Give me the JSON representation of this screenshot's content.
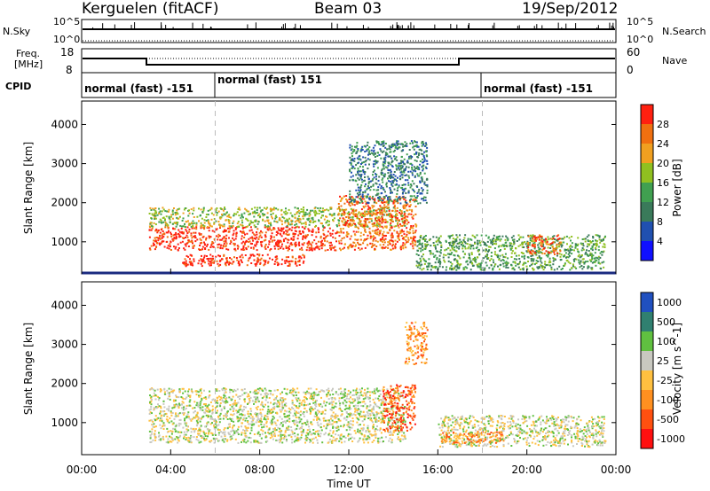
{
  "header": {
    "station": "Kerguelen (fitACF)",
    "beam": "Beam 03",
    "date": "19/Sep/2012"
  },
  "left_labels": {
    "nsky": "N.Sky",
    "freq": "Freq.",
    "mhz": "[MHz]",
    "cpid": "CPID",
    "nsky_top": "10^5",
    "nsky_bottom": "10^0",
    "freq_top": "18",
    "freq_bottom": "8"
  },
  "right_labels": {
    "nsearch": "N.Search",
    "nave": "Nave",
    "nsearch_top": "10^5",
    "nsearch_bottom": "10^0",
    "nave_top": "60",
    "nave_bottom": "0"
  },
  "cpid_segments": [
    {
      "label": "normal (fast) -151",
      "start_hour": 0
    },
    {
      "label": "normal (fast) 151",
      "start_hour": 6
    },
    {
      "label": "normal (fast) -151",
      "start_hour": 18
    }
  ],
  "colors": {
    "power_scale": [
      "#1010ff",
      "#2050b0",
      "#3a7a5a",
      "#40a050",
      "#90c020",
      "#f0a020",
      "#f07010",
      "#ff2010"
    ],
    "velocity_scale": [
      "#ff1010",
      "#ff5010",
      "#ff9020",
      "#ffc040",
      "#c8c8c0",
      "#60c040",
      "#308070",
      "#2050c0"
    ],
    "ground_scatter": "#b8b8b0"
  },
  "chart_data": [
    {
      "type": "heatmap",
      "name": "power",
      "ylabel": "Slant Range [km]",
      "xlabel": "",
      "colorbar_label": "Power [dB]",
      "colorbar_ticks": [
        4,
        8,
        12,
        16,
        20,
        24,
        28
      ],
      "yticks": [
        1000,
        2000,
        3000,
        4000
      ],
      "ylim": [
        180,
        4600
      ],
      "xlim": [
        0,
        24
      ],
      "regions": [
        {
          "t": [
            3.0,
            11.5
          ],
          "r": [
            800,
            1400
          ],
          "level": 7
        },
        {
          "t": [
            3.0,
            14.5
          ],
          "r": [
            1400,
            1900
          ],
          "level": 4
        },
        {
          "t": [
            4.5,
            10.0
          ],
          "r": [
            400,
            700
          ],
          "level": 7
        },
        {
          "t": [
            11.5,
            15.0
          ],
          "r": [
            800,
            2200
          ],
          "level": 6
        },
        {
          "t": [
            12.0,
            15.5
          ],
          "r": [
            2000,
            3600
          ],
          "level": 2
        },
        {
          "t": [
            15.0,
            23.5
          ],
          "r": [
            300,
            1200
          ],
          "level": 3
        },
        {
          "t": [
            20.0,
            21.5
          ],
          "r": [
            700,
            1200
          ],
          "level": 6
        }
      ]
    },
    {
      "type": "heatmap",
      "name": "velocity",
      "ylabel": "Slant Range [km]",
      "xlabel": "Time UT",
      "colorbar_label": "Velocity [m s^-1]",
      "colorbar_ticks": [
        "1000",
        "500",
        "100",
        "25",
        "-25",
        "-100",
        "-500",
        "-1000"
      ],
      "yticks": [
        1000,
        2000,
        3000,
        4000
      ],
      "ylim": [
        180,
        4600
      ],
      "xlim": [
        0,
        24
      ],
      "xticks": [
        "00:00",
        "04:00",
        "08:00",
        "12:00",
        "16:00",
        "20:00",
        "00:00"
      ],
      "regions": [
        {
          "t": [
            3.0,
            14.5
          ],
          "r": [
            500,
            1900
          ],
          "level": 4
        },
        {
          "t": [
            13.5,
            15.0
          ],
          "r": [
            800,
            2000
          ],
          "level": 1
        },
        {
          "t": [
            14.5,
            15.5
          ],
          "r": [
            2500,
            3600
          ],
          "level": 2
        },
        {
          "t": [
            16.0,
            23.5
          ],
          "r": [
            400,
            1200
          ],
          "level": 4
        },
        {
          "t": [
            16.0,
            19.0
          ],
          "r": [
            500,
            800
          ],
          "level": 2
        }
      ]
    }
  ]
}
